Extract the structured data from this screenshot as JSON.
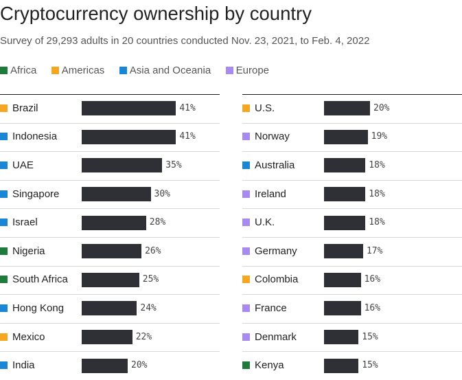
{
  "title": "Cryptocurrency ownership by country",
  "subtitle": "Survey of 29,293 adults in 20 countries conducted Nov. 23, 2021, to Feb. 4, 2022",
  "legend": [
    {
      "label": "Africa",
      "color": "#1e7b3c"
    },
    {
      "label": "Americas",
      "color": "#f5a623"
    },
    {
      "label": "Asia and Oceania",
      "color": "#1a86d8"
    },
    {
      "label": "Europe",
      "color": "#a78bf0"
    }
  ],
  "chart_data": {
    "type": "bar",
    "orientation": "horizontal",
    "title": "Cryptocurrency ownership by country",
    "subtitle": "Survey of 29,293 adults in 20 countries conducted Nov. 23, 2021, to Feb. 4, 2022",
    "value_suffix": "%",
    "xlim": [
      0,
      41
    ],
    "grid": false,
    "legend_position": "top-left",
    "columns": [
      [
        {
          "country": "Brazil",
          "region": "Americas",
          "value": 41
        },
        {
          "country": "Indonesia",
          "region": "Asia and Oceania",
          "value": 41
        },
        {
          "country": "UAE",
          "region": "Asia and Oceania",
          "value": 35
        },
        {
          "country": "Singapore",
          "region": "Asia and Oceania",
          "value": 30
        },
        {
          "country": "Israel",
          "region": "Asia and Oceania",
          "value": 28
        },
        {
          "country": "Nigeria",
          "region": "Africa",
          "value": 26
        },
        {
          "country": "South Africa",
          "region": "Africa",
          "value": 25
        },
        {
          "country": "Hong Kong",
          "region": "Asia and Oceania",
          "value": 24
        },
        {
          "country": "Mexico",
          "region": "Americas",
          "value": 22
        },
        {
          "country": "India",
          "region": "Asia and Oceania",
          "value": 20
        }
      ],
      [
        {
          "country": "U.S.",
          "region": "Americas",
          "value": 20
        },
        {
          "country": "Norway",
          "region": "Europe",
          "value": 19
        },
        {
          "country": "Australia",
          "region": "Asia and Oceania",
          "value": 18
        },
        {
          "country": "Ireland",
          "region": "Europe",
          "value": 18
        },
        {
          "country": "U.K.",
          "region": "Europe",
          "value": 18
        },
        {
          "country": "Germany",
          "region": "Europe",
          "value": 17
        },
        {
          "country": "Colombia",
          "region": "Americas",
          "value": 16
        },
        {
          "country": "France",
          "region": "Europe",
          "value": 16
        },
        {
          "country": "Denmark",
          "region": "Europe",
          "value": 15
        },
        {
          "country": "Kenya",
          "region": "Africa",
          "value": 15
        }
      ]
    ]
  }
}
